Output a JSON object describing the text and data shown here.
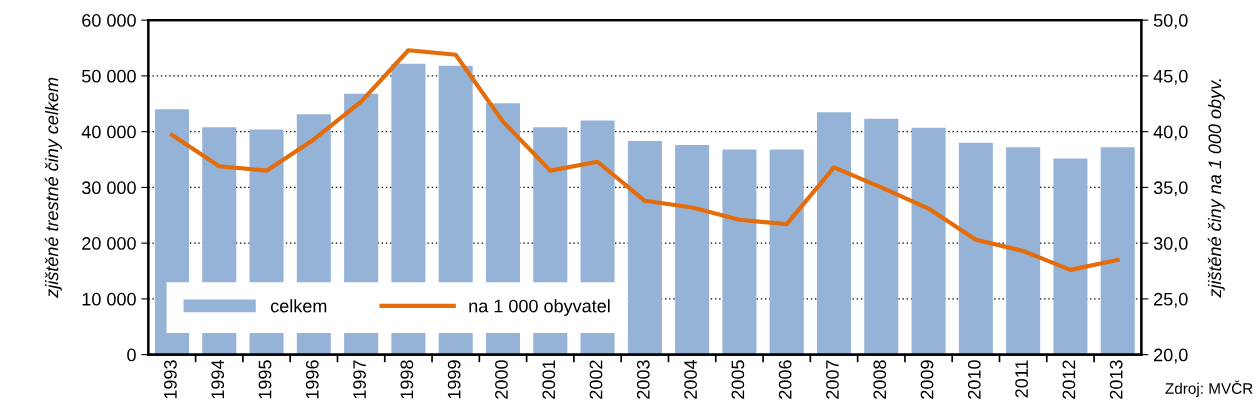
{
  "chart_data": {
    "type": "bar",
    "ylabel": "zjištěné trestné činy celkem",
    "y2label": "zjištěné činy na 1 000 obyv.",
    "categories": [
      "1993",
      "1994",
      "1995",
      "1996",
      "1997",
      "1998",
      "1999",
      "2000",
      "2001",
      "2002",
      "2003",
      "2004",
      "2005",
      "2006",
      "2007",
      "2008",
      "2009",
      "2010",
      "2011",
      "2012",
      "2013"
    ],
    "series": [
      {
        "name": "celkem",
        "color": "#95b3d7",
        "values": [
          44000,
          40800,
          40400,
          43100,
          46800,
          52200,
          51800,
          45100,
          40800,
          42000,
          38300,
          37600,
          36800,
          36800,
          43500,
          42300,
          40700,
          38000,
          37200,
          35200,
          37200
        ]
      },
      {
        "name": "na 1 000 obyvatel",
        "type": "line",
        "axis": "y2",
        "color": "#e46c0a",
        "values": [
          39.7,
          36.9,
          36.5,
          39.3,
          42.7,
          47.3,
          46.9,
          40.9,
          36.5,
          37.3,
          33.8,
          33.2,
          32.1,
          31.7,
          36.8,
          35.0,
          33.1,
          30.3,
          29.3,
          27.6,
          28.5
        ]
      }
    ],
    "ylim": [
      0,
      60000
    ],
    "yticks": [
      {
        "value": 0,
        "label": "0"
      },
      {
        "value": 10000,
        "label": "10 000"
      },
      {
        "value": 20000,
        "label": "20 000"
      },
      {
        "value": 30000,
        "label": "30 000"
      },
      {
        "value": 40000,
        "label": "40 000"
      },
      {
        "value": 50000,
        "label": "50 000"
      },
      {
        "value": 60000,
        "label": "60 000"
      }
    ],
    "y2lim": [
      20,
      50
    ],
    "y2ticks": [
      {
        "value": 20,
        "label": "20,0"
      },
      {
        "value": 25,
        "label": "25,0"
      },
      {
        "value": 30,
        "label": "30,0"
      },
      {
        "value": 35,
        "label": "35,0"
      },
      {
        "value": 40,
        "label": "40,0"
      },
      {
        "value": 45,
        "label": "45,0"
      },
      {
        "value": 50,
        "label": "50,0"
      }
    ],
    "grid": "y",
    "legend": "bottom left",
    "marker": "none",
    "line_style": "solid",
    "annotations": [
      "Zdroj: MVČR"
    ]
  }
}
